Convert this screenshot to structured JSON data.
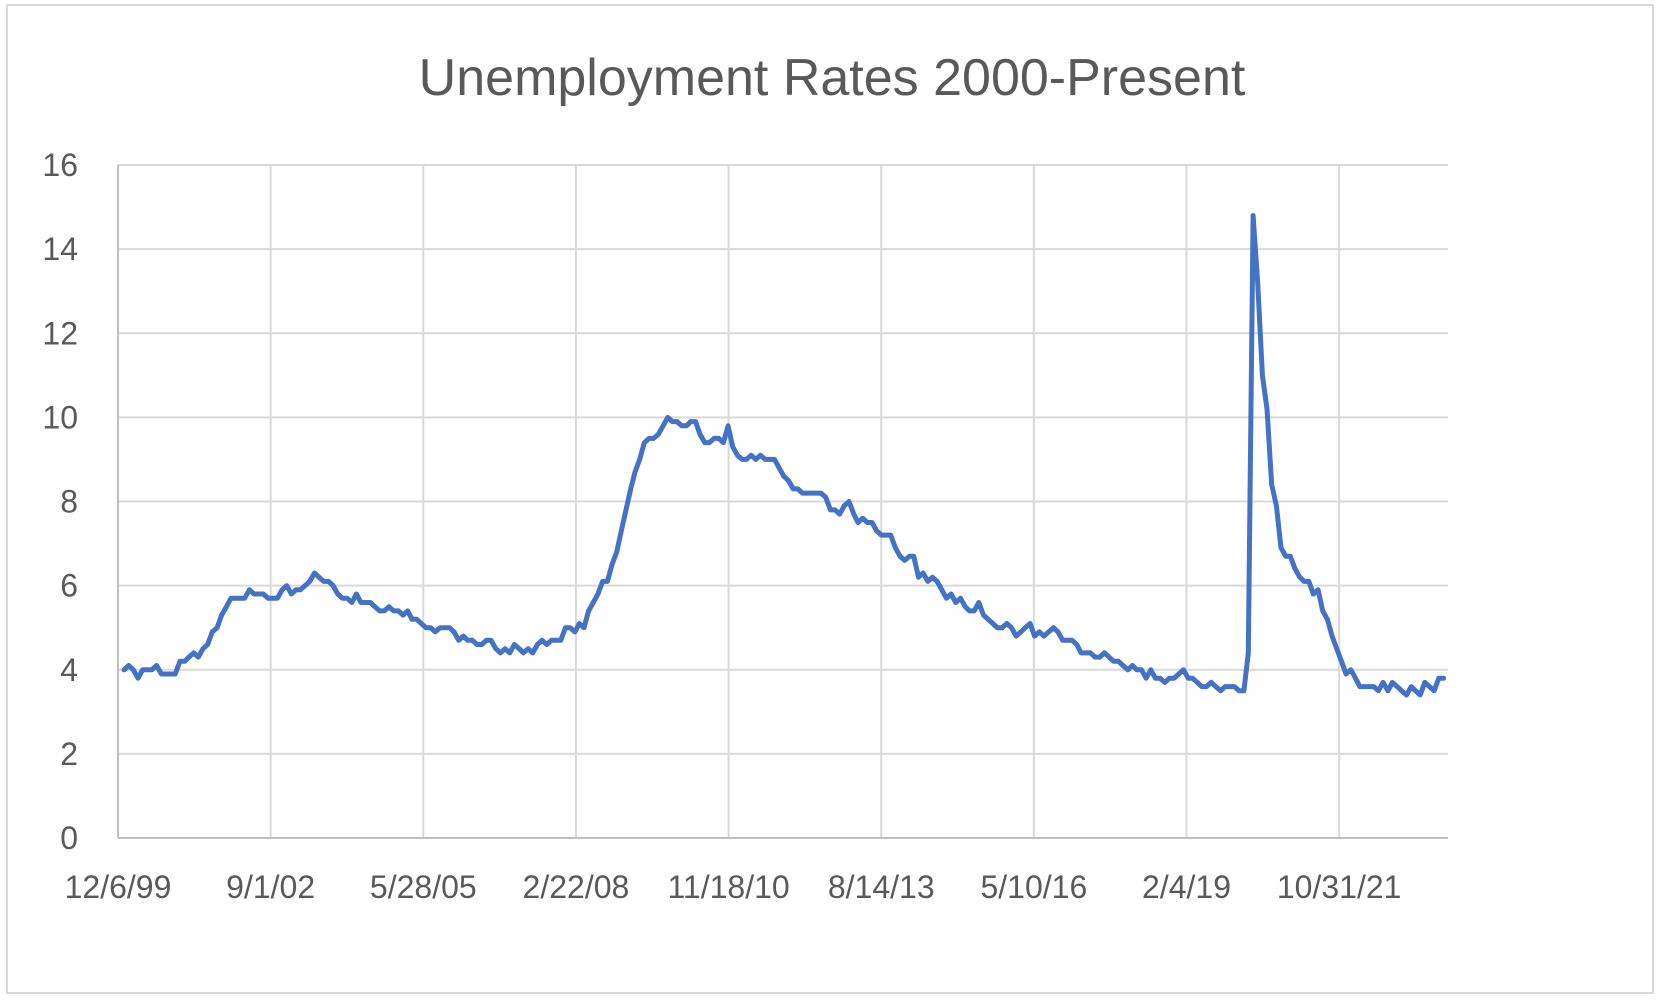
{
  "chart_data": {
    "type": "line",
    "title": "Unemployment Rates 2000-Present",
    "xlabel": "",
    "ylabel": "",
    "ylim": [
      0,
      16
    ],
    "yticks": [
      0,
      2,
      4,
      6,
      8,
      10,
      12,
      14,
      16
    ],
    "xlim": [
      "1999-12-06",
      "2023-10-14"
    ],
    "xticks": [
      "12/6/99",
      "9/1/02",
      "5/28/05",
      "2/22/08",
      "11/18/10",
      "8/14/13",
      "5/10/16",
      "2/4/19",
      "10/31/21"
    ],
    "xtick_dates": [
      "1999-12-06",
      "2002-09-01",
      "2005-05-28",
      "2008-02-22",
      "2010-11-18",
      "2013-08-14",
      "2016-05-10",
      "2019-02-04",
      "2021-10-31"
    ],
    "grid": true,
    "legend": "none",
    "line_color": "#4472c4",
    "series": [
      {
        "x": [
          "2000-01",
          "2000-02",
          "2000-03",
          "2000-04",
          "2000-05",
          "2000-06",
          "2000-07",
          "2000-08",
          "2000-09",
          "2000-10",
          "2000-11",
          "2000-12",
          "2001-01",
          "2001-02",
          "2001-03",
          "2001-04",
          "2001-05",
          "2001-06",
          "2001-07",
          "2001-08",
          "2001-09",
          "2001-10",
          "2001-11",
          "2001-12",
          "2002-01",
          "2002-02",
          "2002-03",
          "2002-04",
          "2002-05",
          "2002-06",
          "2002-07",
          "2002-08",
          "2002-09",
          "2002-10",
          "2002-11",
          "2002-12",
          "2003-01",
          "2003-02",
          "2003-03",
          "2003-04",
          "2003-05",
          "2003-06",
          "2003-07",
          "2003-08",
          "2003-09",
          "2003-10",
          "2003-11",
          "2003-12",
          "2004-01",
          "2004-02",
          "2004-03",
          "2004-04",
          "2004-05",
          "2004-06",
          "2004-07",
          "2004-08",
          "2004-09",
          "2004-10",
          "2004-11",
          "2004-12",
          "2005-01",
          "2005-02",
          "2005-03",
          "2005-04",
          "2005-05",
          "2005-06",
          "2005-07",
          "2005-08",
          "2005-09",
          "2005-10",
          "2005-11",
          "2005-12",
          "2006-01",
          "2006-02",
          "2006-03",
          "2006-04",
          "2006-05",
          "2006-06",
          "2006-07",
          "2006-08",
          "2006-09",
          "2006-10",
          "2006-11",
          "2006-12",
          "2007-01",
          "2007-02",
          "2007-03",
          "2007-04",
          "2007-05",
          "2007-06",
          "2007-07",
          "2007-08",
          "2007-09",
          "2007-10",
          "2007-11",
          "2007-12",
          "2008-01",
          "2008-02",
          "2008-03",
          "2008-04",
          "2008-05",
          "2008-06",
          "2008-07",
          "2008-08",
          "2008-09",
          "2008-10",
          "2008-11",
          "2008-12",
          "2009-01",
          "2009-02",
          "2009-03",
          "2009-04",
          "2009-05",
          "2009-06",
          "2009-07",
          "2009-08",
          "2009-09",
          "2009-10",
          "2009-11",
          "2009-12",
          "2010-01",
          "2010-02",
          "2010-03",
          "2010-04",
          "2010-05",
          "2010-06",
          "2010-07",
          "2010-08",
          "2010-09",
          "2010-10",
          "2010-11",
          "2010-12",
          "2011-01",
          "2011-02",
          "2011-03",
          "2011-04",
          "2011-05",
          "2011-06",
          "2011-07",
          "2011-08",
          "2011-09",
          "2011-10",
          "2011-11",
          "2011-12",
          "2012-01",
          "2012-02",
          "2012-03",
          "2012-04",
          "2012-05",
          "2012-06",
          "2012-07",
          "2012-08",
          "2012-09",
          "2012-10",
          "2012-11",
          "2012-12",
          "2013-01",
          "2013-02",
          "2013-03",
          "2013-04",
          "2013-05",
          "2013-06",
          "2013-07",
          "2013-08",
          "2013-09",
          "2013-10",
          "2013-11",
          "2013-12",
          "2014-01",
          "2014-02",
          "2014-03",
          "2014-04",
          "2014-05",
          "2014-06",
          "2014-07",
          "2014-08",
          "2014-09",
          "2014-10",
          "2014-11",
          "2014-12",
          "2015-01",
          "2015-02",
          "2015-03",
          "2015-04",
          "2015-05",
          "2015-06",
          "2015-07",
          "2015-08",
          "2015-09",
          "2015-10",
          "2015-11",
          "2015-12",
          "2016-01",
          "2016-02",
          "2016-03",
          "2016-04",
          "2016-05",
          "2016-06",
          "2016-07",
          "2016-08",
          "2016-09",
          "2016-10",
          "2016-11",
          "2016-12",
          "2017-01",
          "2017-02",
          "2017-03",
          "2017-04",
          "2017-05",
          "2017-06",
          "2017-07",
          "2017-08",
          "2017-09",
          "2017-10",
          "2017-11",
          "2017-12",
          "2018-01",
          "2018-02",
          "2018-03",
          "2018-04",
          "2018-05",
          "2018-06",
          "2018-07",
          "2018-08",
          "2018-09",
          "2018-10",
          "2018-11",
          "2018-12",
          "2019-01",
          "2019-02",
          "2019-03",
          "2019-04",
          "2019-05",
          "2019-06",
          "2019-07",
          "2019-08",
          "2019-09",
          "2019-10",
          "2019-11",
          "2019-12",
          "2020-01",
          "2020-02",
          "2020-03",
          "2020-04",
          "2020-05",
          "2020-06",
          "2020-07",
          "2020-08",
          "2020-09",
          "2020-10",
          "2020-11",
          "2020-12",
          "2021-01",
          "2021-02",
          "2021-03",
          "2021-04",
          "2021-05",
          "2021-06",
          "2021-07",
          "2021-08",
          "2021-09",
          "2021-10",
          "2021-11",
          "2021-12",
          "2022-01",
          "2022-02",
          "2022-03",
          "2022-04",
          "2022-05",
          "2022-06",
          "2022-07",
          "2022-08",
          "2022-09",
          "2022-10",
          "2022-11",
          "2022-12",
          "2023-01",
          "2023-02",
          "2023-03",
          "2023-04",
          "2023-05",
          "2023-06",
          "2023-07",
          "2023-08",
          "2023-09"
        ],
        "values": [
          4.0,
          4.1,
          4.0,
          3.8,
          4.0,
          4.0,
          4.0,
          4.1,
          3.9,
          3.9,
          3.9,
          3.9,
          4.2,
          4.2,
          4.3,
          4.4,
          4.3,
          4.5,
          4.6,
          4.9,
          5.0,
          5.3,
          5.5,
          5.7,
          5.7,
          5.7,
          5.7,
          5.9,
          5.8,
          5.8,
          5.8,
          5.7,
          5.7,
          5.7,
          5.9,
          6.0,
          5.8,
          5.9,
          5.9,
          6.0,
          6.1,
          6.3,
          6.2,
          6.1,
          6.1,
          6.0,
          5.8,
          5.7,
          5.7,
          5.6,
          5.8,
          5.6,
          5.6,
          5.6,
          5.5,
          5.4,
          5.4,
          5.5,
          5.4,
          5.4,
          5.3,
          5.4,
          5.2,
          5.2,
          5.1,
          5.0,
          5.0,
          4.9,
          5.0,
          5.0,
          5.0,
          4.9,
          4.7,
          4.8,
          4.7,
          4.7,
          4.6,
          4.6,
          4.7,
          4.7,
          4.5,
          4.4,
          4.5,
          4.4,
          4.6,
          4.5,
          4.4,
          4.5,
          4.4,
          4.6,
          4.7,
          4.6,
          4.7,
          4.7,
          4.7,
          5.0,
          5.0,
          4.9,
          5.1,
          5.0,
          5.4,
          5.6,
          5.8,
          6.1,
          6.1,
          6.5,
          6.8,
          7.3,
          7.8,
          8.3,
          8.7,
          9.0,
          9.4,
          9.5,
          9.5,
          9.6,
          9.8,
          10.0,
          9.9,
          9.9,
          9.8,
          9.8,
          9.9,
          9.9,
          9.6,
          9.4,
          9.4,
          9.5,
          9.5,
          9.4,
          9.8,
          9.3,
          9.1,
          9.0,
          9.0,
          9.1,
          9.0,
          9.1,
          9.0,
          9.0,
          9.0,
          8.8,
          8.6,
          8.5,
          8.3,
          8.3,
          8.2,
          8.2,
          8.2,
          8.2,
          8.2,
          8.1,
          7.8,
          7.8,
          7.7,
          7.9,
          8.0,
          7.7,
          7.5,
          7.6,
          7.5,
          7.5,
          7.3,
          7.2,
          7.2,
          7.2,
          6.9,
          6.7,
          6.6,
          6.7,
          6.7,
          6.2,
          6.3,
          6.1,
          6.2,
          6.1,
          5.9,
          5.7,
          5.8,
          5.6,
          5.7,
          5.5,
          5.4,
          5.4,
          5.6,
          5.3,
          5.2,
          5.1,
          5.0,
          5.0,
          5.1,
          5.0,
          4.8,
          4.9,
          5.0,
          5.1,
          4.8,
          4.9,
          4.8,
          4.9,
          5.0,
          4.9,
          4.7,
          4.7,
          4.7,
          4.6,
          4.4,
          4.4,
          4.4,
          4.3,
          4.3,
          4.4,
          4.3,
          4.2,
          4.2,
          4.1,
          4.0,
          4.1,
          4.0,
          4.0,
          3.8,
          4.0,
          3.8,
          3.8,
          3.7,
          3.8,
          3.8,
          3.9,
          4.0,
          3.8,
          3.8,
          3.7,
          3.6,
          3.6,
          3.7,
          3.6,
          3.5,
          3.6,
          3.6,
          3.6,
          3.5,
          3.5,
          4.4,
          14.8,
          13.2,
          11.0,
          10.2,
          8.4,
          7.9,
          6.9,
          6.7,
          6.7,
          6.4,
          6.2,
          6.1,
          6.1,
          5.8,
          5.9,
          5.4,
          5.2,
          4.8,
          4.5,
          4.2,
          3.9,
          4.0,
          3.8,
          3.6,
          3.6,
          3.6,
          3.6,
          3.5,
          3.7,
          3.5,
          3.7,
          3.6,
          3.5,
          3.4,
          3.6,
          3.5,
          3.4,
          3.7,
          3.6,
          3.5,
          3.8,
          3.8
        ]
      }
    ]
  }
}
